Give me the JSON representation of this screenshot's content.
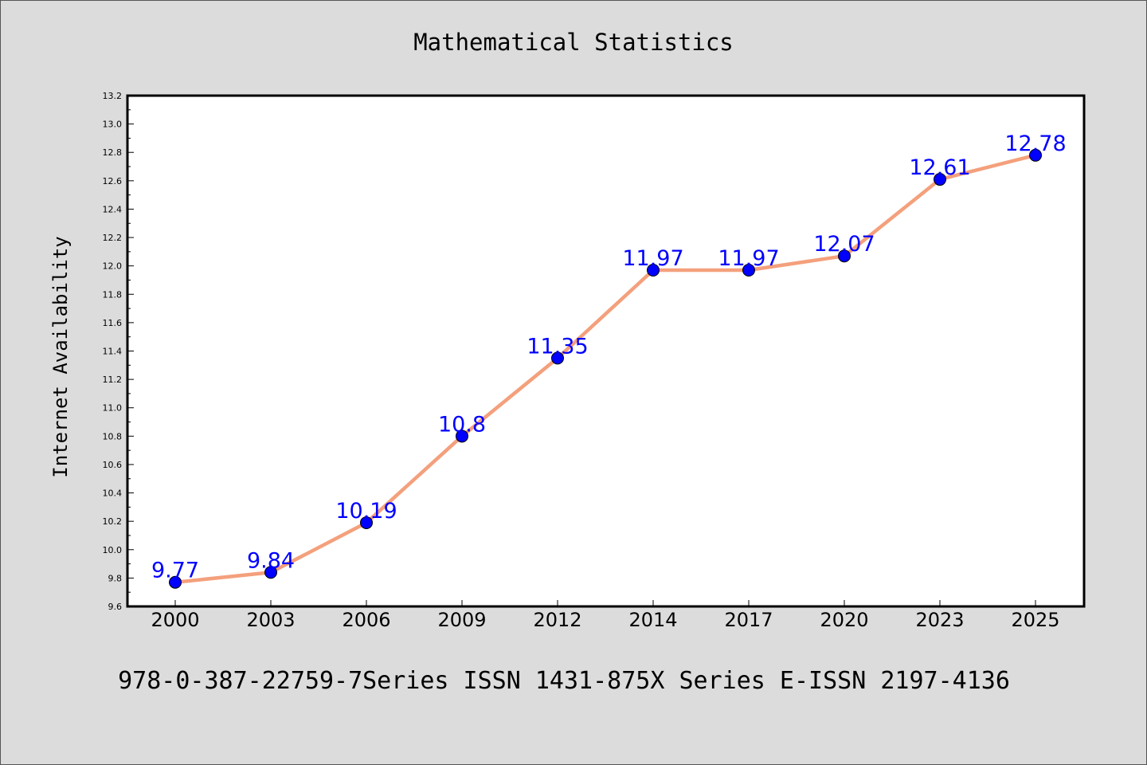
{
  "chart_data": {
    "type": "line",
    "title": "Mathematical Statistics",
    "xlabel": "",
    "ylabel": "Internet Availability",
    "footer": "978-0-387-22759-7Series ISSN 1431-875X Series E-ISSN 2197-4136",
    "categories": [
      "2000",
      "2003",
      "2006",
      "2009",
      "2012",
      "2014",
      "2017",
      "2020",
      "2023",
      "2025"
    ],
    "values": [
      9.77,
      9.84,
      10.19,
      10.8,
      11.35,
      11.97,
      11.97,
      12.07,
      12.61,
      12.78
    ],
    "data_labels": [
      "9.77",
      "9.84",
      "10.19",
      "10.8",
      "11.35",
      "11.97",
      "11.97",
      "12.07",
      "12.61",
      "12.78"
    ],
    "ylim": [
      9.6,
      13.2
    ],
    "yticks": [
      "9.6",
      "9.8",
      "10.0",
      "10.2",
      "10.4",
      "10.6",
      "10.8",
      "11.0",
      "11.2",
      "11.4",
      "11.6",
      "11.8",
      "12.0",
      "12.2",
      "12.4",
      "12.6",
      "12.8",
      "13.0",
      "13.2"
    ],
    "grid": false,
    "legend": "none",
    "colors": {
      "line": "#f4a07c",
      "marker": "#0000ff",
      "label": "#0000ff",
      "background": "#dcdcdc",
      "plot_background": "#ffffff"
    }
  }
}
